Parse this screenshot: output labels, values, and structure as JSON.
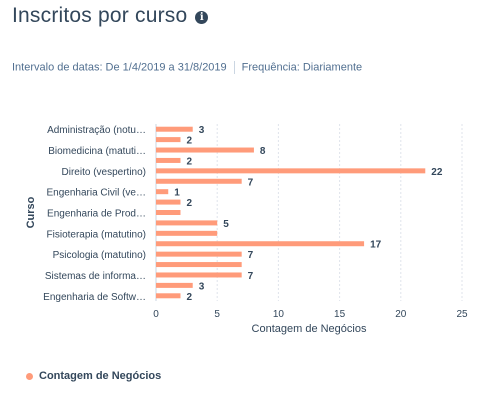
{
  "header": {
    "title": "Inscritos por curso",
    "info_icon": "info-icon"
  },
  "filters": {
    "date_range": "Intervalo de datas: De 1/4/2019 a 31/8/2019",
    "frequency": "Frequência: Diariamente"
  },
  "legend": {
    "label": "Contagem de Negócios",
    "color": "#ff9b7a"
  },
  "chart_data": {
    "type": "bar",
    "orientation": "horizontal",
    "xlabel": "Contagem de Negócios",
    "ylabel": "Curso",
    "xlim": [
      0,
      25
    ],
    "xticks": [
      0,
      5,
      10,
      15,
      20,
      25
    ],
    "grid": true,
    "bar_color": "#ff9b7a",
    "categories": [
      "Administração (notu…",
      "",
      "Biomedicina (matuti…",
      "",
      "Direito (vespertino)",
      "",
      "Engenharia Civil (ve…",
      "",
      "Engenharia de Prod…",
      "",
      "Fisioterapia (matutino)",
      "",
      "Psicologia (matutino)",
      "",
      "Sistemas de informa…",
      "",
      "Engenharia de Softw…"
    ],
    "values": [
      3,
      2,
      8,
      2,
      22,
      7,
      1,
      2,
      2,
      5,
      5,
      17,
      7,
      7,
      7,
      3,
      2
    ],
    "data_labels": [
      "3",
      "2",
      "8",
      "2",
      "22",
      "7",
      "1",
      "2",
      "",
      "5",
      "",
      "17",
      "7",
      "",
      "7",
      "3",
      "2"
    ]
  }
}
